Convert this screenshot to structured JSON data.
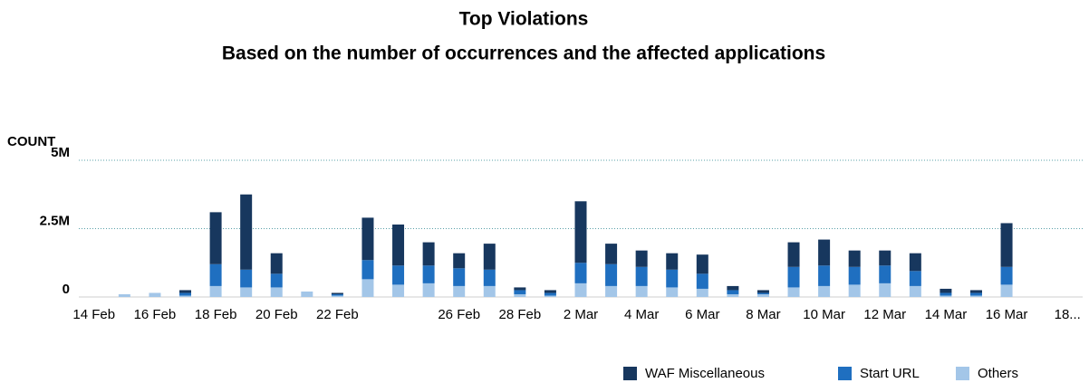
{
  "chart_data": {
    "type": "stacked_bar",
    "title": "Top Violations",
    "subtitle": "Based on the number of occurrences and the affected applications",
    "y_label": "COUNT",
    "categories": [
      "14 Feb",
      null,
      "16 Feb",
      null,
      "18 Feb",
      null,
      "20 Feb",
      null,
      "22 Feb",
      null,
      null,
      null,
      "26 Feb",
      null,
      "28 Feb",
      null,
      "2 Mar",
      null,
      "4 Mar",
      null,
      "6 Mar",
      null,
      "8 Mar",
      null,
      "10 Mar",
      null,
      "12 Mar",
      null,
      "14 Mar",
      null,
      "16 Mar",
      null,
      "18..."
    ],
    "series": [
      {
        "name": "WAF Miscellaneous",
        "color": "#17375e",
        "values": [
          0,
          0,
          0,
          100000,
          1900000,
          2750000,
          750000,
          0,
          50000,
          1550000,
          1500000,
          850000,
          550000,
          950000,
          100000,
          100000,
          2250000,
          750000,
          600000,
          600000,
          700000,
          150000,
          100000,
          900000,
          950000,
          600000,
          550000,
          650000,
          150000,
          100000,
          1600000,
          0,
          0
        ]
      },
      {
        "name": "Start URL",
        "color": "#1f6fc0",
        "values": [
          0,
          0,
          0,
          100000,
          800000,
          650000,
          500000,
          0,
          50000,
          700000,
          700000,
          650000,
          650000,
          600000,
          150000,
          100000,
          750000,
          800000,
          700000,
          650000,
          550000,
          150000,
          50000,
          750000,
          750000,
          650000,
          650000,
          550000,
          100000,
          100000,
          650000,
          0,
          0
        ]
      },
      {
        "name": "Others",
        "color": "#a3c6e8",
        "values": [
          0,
          100000,
          150000,
          50000,
          400000,
          350000,
          350000,
          200000,
          50000,
          650000,
          450000,
          500000,
          400000,
          400000,
          100000,
          50000,
          500000,
          400000,
          400000,
          350000,
          300000,
          100000,
          100000,
          350000,
          400000,
          450000,
          500000,
          400000,
          50000,
          50000,
          450000,
          0,
          0
        ]
      }
    ],
    "ylim": [
      0,
      5000000
    ],
    "yticks": [
      {
        "value": 0,
        "label": "0"
      },
      {
        "value": 2500000,
        "label": "2.5M"
      },
      {
        "value": 5000000,
        "label": "5M"
      }
    ],
    "grid": true,
    "legend": "bottom"
  }
}
